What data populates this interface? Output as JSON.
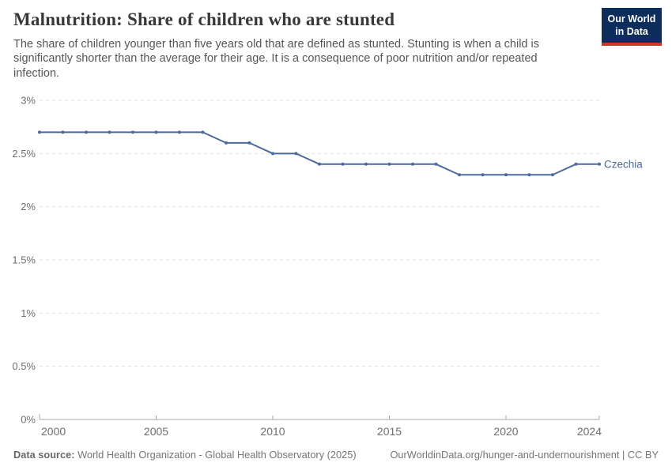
{
  "header": {
    "title": "Malnutrition: Share of children who are stunted",
    "subtitle": "The share of children younger than five years old that are defined as stunted. Stunting is when a child is significantly shorter than the average for their age. It is a consequence of poor nutrition and/or repeated infection.",
    "logo": {
      "line1": "Our World",
      "line2": "in Data",
      "bg_color": "#0d2d5a",
      "accent_color": "#d0342f"
    }
  },
  "chart_data": {
    "type": "line",
    "title": "Malnutrition: Share of children who are stunted",
    "xlabel": "",
    "ylabel": "",
    "xlim": [
      2000,
      2024
    ],
    "ylim": [
      0,
      3
    ],
    "grid": "horizontal-dashed",
    "legend_position": "end-of-line",
    "line_color": "#4c6a9c",
    "grid_color": "#e0e0e0",
    "axis_color": "#a8a8a8",
    "yticks": [
      {
        "value": 0,
        "label": "0%"
      },
      {
        "value": 0.5,
        "label": "0.5%"
      },
      {
        "value": 1,
        "label": "1%"
      },
      {
        "value": 1.5,
        "label": "1.5%"
      },
      {
        "value": 2,
        "label": "2%"
      },
      {
        "value": 2.5,
        "label": "2.5%"
      },
      {
        "value": 3,
        "label": "3%"
      }
    ],
    "xticks": [
      {
        "value": 2000,
        "label": "2000"
      },
      {
        "value": 2005,
        "label": "2005"
      },
      {
        "value": 2010,
        "label": "2010"
      },
      {
        "value": 2015,
        "label": "2015"
      },
      {
        "value": 2020,
        "label": "2020"
      },
      {
        "value": 2024,
        "label": "2024"
      }
    ],
    "series": [
      {
        "name": "Czechia",
        "color": "#4c6a9c",
        "x": [
          2000,
          2001,
          2002,
          2003,
          2004,
          2005,
          2006,
          2007,
          2008,
          2009,
          2010,
          2011,
          2012,
          2013,
          2014,
          2015,
          2016,
          2017,
          2018,
          2019,
          2020,
          2021,
          2022,
          2023,
          2024
        ],
        "values": [
          2.7,
          2.7,
          2.7,
          2.7,
          2.7,
          2.7,
          2.7,
          2.7,
          2.6,
          2.6,
          2.5,
          2.5,
          2.4,
          2.4,
          2.4,
          2.4,
          2.4,
          2.4,
          2.3,
          2.3,
          2.3,
          2.3,
          2.3,
          2.4,
          2.4
        ]
      }
    ]
  },
  "footer": {
    "datasource_label": "Data source:",
    "datasource_text": " World Health Organization - Global Health Observatory (2025)",
    "link_text": "OurWorldinData.org/hunger-and-undernourishment | CC BY"
  }
}
